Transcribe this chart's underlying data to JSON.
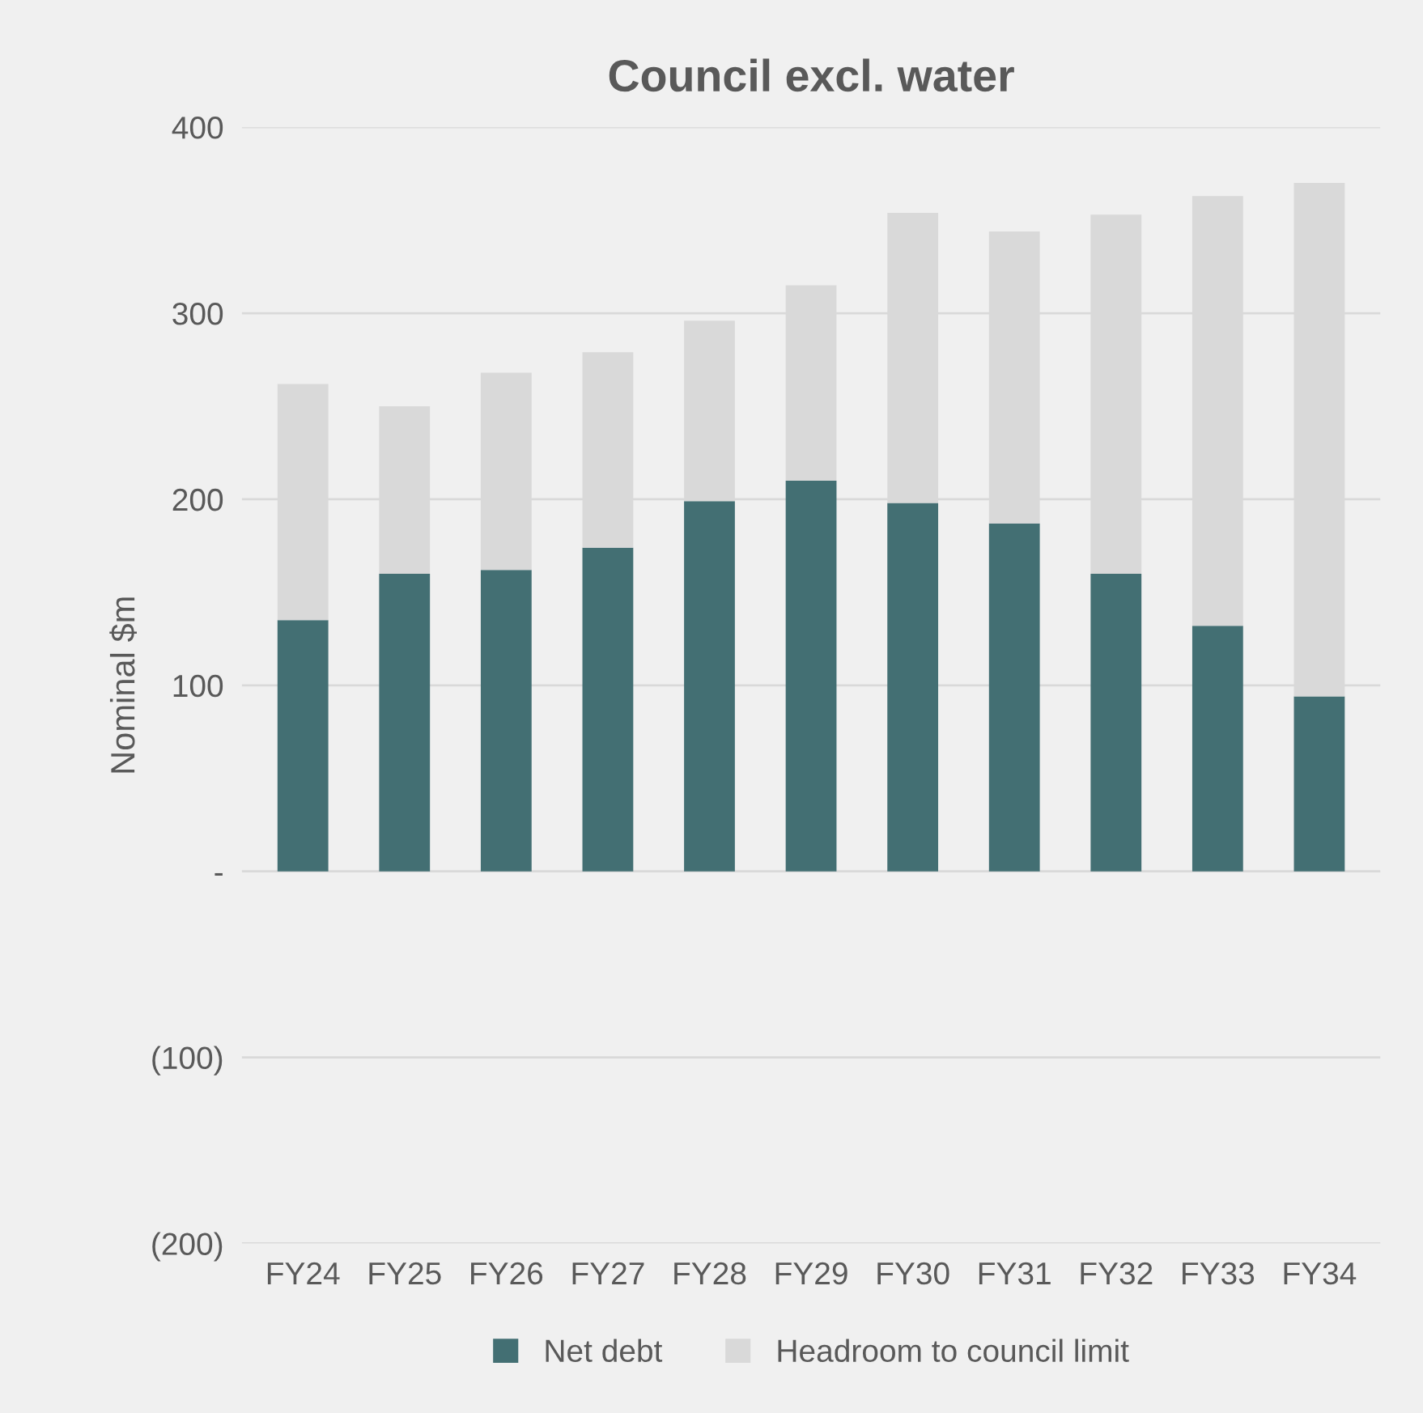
{
  "chart_data": {
    "type": "bar",
    "title": "Council excl. water",
    "ylabel": "Nominal $m",
    "categories": [
      "FY24",
      "FY25",
      "FY26",
      "FY27",
      "FY28",
      "FY29",
      "FY30",
      "FY31",
      "FY32",
      "FY33",
      "FY34"
    ],
    "series": [
      {
        "name": "Net debt",
        "color": "#436f73",
        "values": [
          135,
          160,
          162,
          174,
          199,
          210,
          198,
          187,
          160,
          132,
          94
        ]
      },
      {
        "name": "Headroom to council limit",
        "color": "#d9d9d9",
        "values": [
          127,
          90,
          106,
          105,
          97,
          105,
          156,
          157,
          193,
          231,
          276
        ]
      }
    ],
    "stacked": true,
    "ylim": [
      -200,
      400
    ],
    "yticks": [
      {
        "value": -200,
        "label": "(200)"
      },
      {
        "value": -100,
        "label": "(100)"
      },
      {
        "value": 0,
        "label": "-"
      },
      100,
      200,
      300,
      400
    ],
    "grid": "y",
    "legend": "bottom"
  }
}
